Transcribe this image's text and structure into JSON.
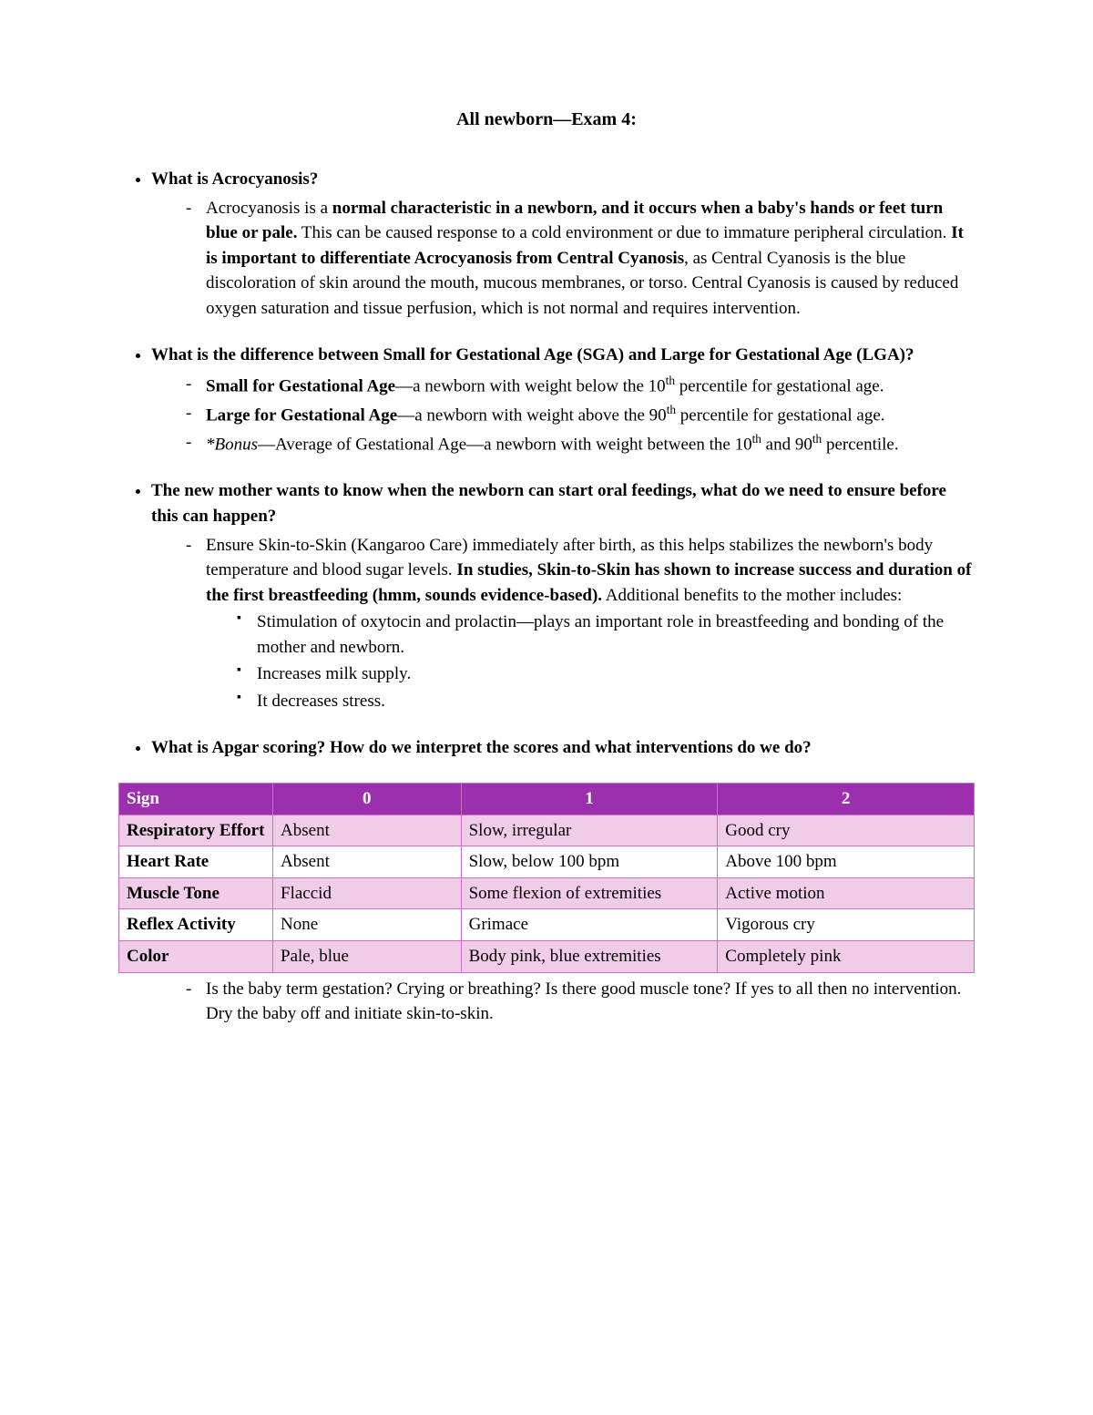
{
  "title": "All newborn—Exam 4:",
  "q1": {
    "question": "What is Acrocyanosis?",
    "a_pre": "Acrocyanosis is a ",
    "a_bold1": "normal characteristic in a newborn, and it occurs when a baby's hands or feet turn blue or pale.",
    "a_mid1": " This can be caused response to a cold environment or due to immature peripheral circulation. ",
    "a_bold2": "It is important to differentiate Acrocyanosis from Central Cyanosis",
    "a_mid2": ", as Central Cyanosis is the blue discoloration of skin around the mouth, mucous membranes, or torso. Central Cyanosis is caused by reduced oxygen saturation and tissue perfusion, which is not normal and requires intervention."
  },
  "q2": {
    "question": "What is the difference between Small for Gestational Age (SGA) and Large for Gestational Age (LGA)?",
    "sga_label": "Small for Gestational Age",
    "sga_text": "—a newborn with weight below the 10",
    "sga_sup": "th",
    "sga_tail": " percentile for gestational age.",
    "lga_label": "Large for Gestational Age",
    "lga_text": "—a newborn with weight above the 90",
    "lga_sup": "th",
    "lga_tail": " percentile for gestational age.",
    "bonus_label": "*Bonus",
    "bonus_text": "—Average of Gestational Age—a newborn with weight between the 10",
    "bonus_sup1": "th",
    "bonus_mid": " and 90",
    "bonus_sup2": "th",
    "bonus_tail": " percentile."
  },
  "q3": {
    "question": "The new mother wants to know when the newborn can start oral feedings, what do we need to ensure before this can happen?",
    "a_pre": "Ensure Skin-to-Skin (Kangaroo Care) immediately after birth, as this helps stabilizes the newborn's body temperature and blood sugar levels. ",
    "a_bold": "In studies, Skin-to-Skin has shown to increase success and duration of the first breastfeeding (hmm, sounds evidence-based).",
    "a_post": "  Additional benefits to the mother includes:",
    "sub1": "Stimulation of oxytocin and prolactin—plays an important role in breastfeeding and bonding of the mother and newborn.",
    "sub2": "Increases milk supply.",
    "sub3": "It decreases stress."
  },
  "q4": {
    "question": "What is Apgar scoring? How do we interpret the scores and what interventions do we do?",
    "post": "Is the baby term gestation? Crying or breathing? Is there good muscle tone? If yes to all then no intervention. Dry the baby off and initiate skin-to-skin."
  },
  "table": {
    "header_bg": "#9b2fae",
    "header_fg": "#ffffff",
    "row_odd_bg": "#f0cce8",
    "row_even_bg": "#ffffff",
    "border_color": "#c96fc5",
    "col_widths": [
      "18%",
      "22%",
      "30%",
      "30%"
    ],
    "headers": [
      "Sign",
      "0",
      "1",
      "2"
    ],
    "rows": [
      {
        "sign": "Respiratory Effort",
        "c0": "Absent",
        "c1": "Slow, irregular",
        "c2": "Good cry"
      },
      {
        "sign": "Heart Rate",
        "c0": "Absent",
        "c1": "Slow, below 100 bpm",
        "c2": "Above 100 bpm"
      },
      {
        "sign": "Muscle Tone",
        "c0": "Flaccid",
        "c1": "Some flexion of extremities",
        "c2": "Active motion"
      },
      {
        "sign": "Reflex Activity",
        "c0": "None",
        "c1": "Grimace",
        "c2": "Vigorous cry"
      },
      {
        "sign": "Color",
        "c0": "Pale, blue",
        "c1": "Body pink, blue extremities",
        "c2": "Completely pink"
      }
    ]
  }
}
